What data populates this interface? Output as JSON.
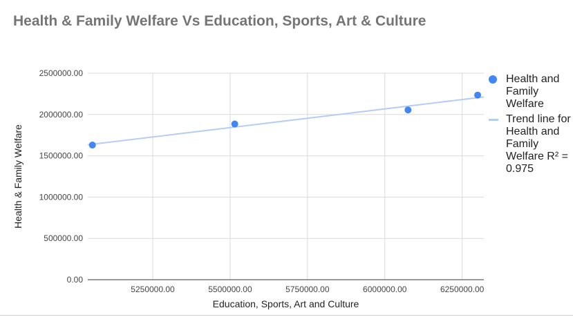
{
  "chart_data": {
    "type": "scatter",
    "title": "Health & Family Welfare Vs Education, Sports, Art & Culture",
    "xlabel": "Education, Sports, Art and Culture",
    "ylabel": "Health & Family Welfare",
    "xlim": [
      5040000,
      6320000
    ],
    "ylim": [
      0,
      2500000
    ],
    "x_ticks": [
      5250000,
      5500000,
      5750000,
      6000000,
      6250000
    ],
    "x_tick_labels": [
      "5250000.00",
      "5500000.00",
      "5750000.00",
      "6000000.00",
      "6250000.00"
    ],
    "y_ticks": [
      0,
      500000,
      1000000,
      1500000,
      2000000,
      2500000
    ],
    "y_tick_labels": [
      "0.00",
      "500000.00",
      "1000000.00",
      "1500000.00",
      "2000000.00",
      "2500000.00"
    ],
    "grid": true,
    "legend_position": "right",
    "series": [
      {
        "name": "Health and Family Welfare",
        "color": "#4285f4",
        "x": [
          5055000,
          5515000,
          6075000,
          6300000
        ],
        "y": [
          1630000,
          1885000,
          2055000,
          2235000
        ]
      }
    ],
    "trendline": {
      "name": "Trend line for Health and Family Welfare R² = 0.975",
      "color": "#b6cdf2",
      "x": [
        5040000,
        6320000
      ],
      "y": [
        1633000,
        2213000
      ]
    }
  }
}
